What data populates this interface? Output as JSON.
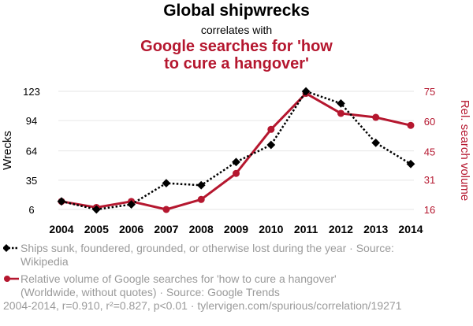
{
  "header": {
    "title": "Global shipwrecks",
    "subtitle": "correlates with",
    "title2_line1": "Google searches for 'how",
    "title2_line2": "to cure a hangover'"
  },
  "colors": {
    "series1": "#000000",
    "series2": "#b5172f",
    "grid": "#e6e6e6",
    "legend_text": "#9a9a9a"
  },
  "legend": {
    "item1_line1": "Ships sunk, foundered, grounded, or otherwise lost during the year · Source:",
    "item1_line2": "Wikipedia",
    "item2_line1": "Relative volume of Google searches for 'how to cure a hangover'",
    "item2_line2": "(Worldwide, without quotes) · Source: Google Trends"
  },
  "footer": {
    "text": "2004-2014, r=0.910, r²=0.827, p<0.01 · tylervigen.com/spurious/correlation/19271"
  },
  "chart_data": {
    "type": "line",
    "x": [
      2004,
      2005,
      2006,
      2007,
      2008,
      2009,
      2010,
      2011,
      2012,
      2013,
      2014
    ],
    "xlabel": "",
    "left_axis": {
      "label": "Wrecks",
      "ticks": [
        6,
        35,
        64,
        94,
        123
      ],
      "range": [
        6,
        123
      ]
    },
    "right_axis": {
      "label": "Rel. search volume",
      "ticks": [
        16,
        31,
        45,
        60,
        75
      ],
      "range": [
        16,
        75
      ]
    },
    "series": [
      {
        "name": "Ships sunk, foundered, grounded, or otherwise lost during the year",
        "axis": "left",
        "style": "dotted",
        "marker": "diamond",
        "values": [
          14,
          6,
          11,
          32,
          30,
          53,
          70,
          123,
          111,
          72,
          51
        ]
      },
      {
        "name": "Relative volume of Google searches for 'how to cure a hangover'",
        "axis": "right",
        "style": "solid",
        "marker": "circle",
        "values": [
          20,
          17,
          20,
          16,
          21,
          34,
          56,
          74,
          64,
          62,
          58
        ]
      }
    ]
  }
}
